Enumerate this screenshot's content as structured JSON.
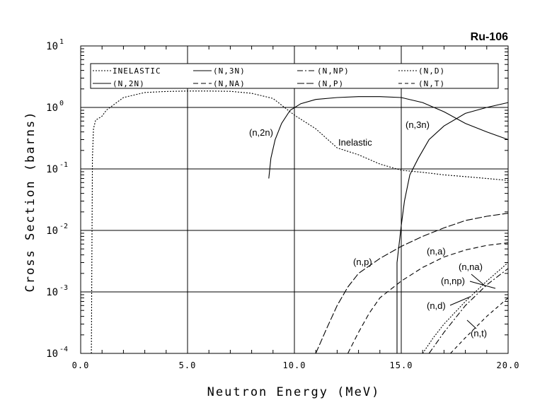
{
  "chart_data": {
    "type": "line",
    "title": "Ru-106",
    "xlabel": "Neutron Energy (MeV)",
    "ylabel": "Cross Section (barns)",
    "xlim": [
      0,
      20
    ],
    "ylim_log10": [
      -4,
      1
    ],
    "y_scale": "log",
    "grid": true,
    "x_ticks": [
      "0.0",
      "5.0",
      "10.0",
      "15.0",
      "20.0"
    ],
    "y_ticks": [
      {
        "base": "10",
        "exp": "-4"
      },
      {
        "base": "10",
        "exp": "-3"
      },
      {
        "base": "10",
        "exp": "-2"
      },
      {
        "base": "10",
        "exp": "-1"
      },
      {
        "base": "10",
        "exp": "0"
      },
      {
        "base": "10",
        "exp": "1"
      }
    ],
    "legend_position": "top",
    "legend": [
      {
        "label": "INELASTIC",
        "dash": "2,2"
      },
      {
        "label": "(N,3N)",
        "dash": ""
      },
      {
        "label": "(N,NP)",
        "dash": "8,3,2,3"
      },
      {
        "label": "(N,D)",
        "dash": "2,2"
      },
      {
        "label": "(N,2N)",
        "dash": ""
      },
      {
        "label": "(N,NA)",
        "dash": "7,4"
      },
      {
        "label": "(N,P)",
        "dash": "10,3"
      },
      {
        "label": "(N,T)",
        "dash": "5,4"
      }
    ],
    "series": [
      {
        "name": "INELASTIC",
        "dash": "2,2",
        "points": [
          [
            0.5,
            5e-05
          ],
          [
            0.55,
            0.15
          ],
          [
            0.6,
            0.45
          ],
          [
            0.7,
            0.62
          ],
          [
            1.0,
            0.72
          ],
          [
            1.2,
            0.9
          ],
          [
            2,
            1.45
          ],
          [
            3,
            1.75
          ],
          [
            4,
            1.82
          ],
          [
            5,
            1.85
          ],
          [
            6,
            1.85
          ],
          [
            7,
            1.83
          ],
          [
            8,
            1.7
          ],
          [
            9,
            1.4
          ],
          [
            10,
            0.75
          ],
          [
            11,
            0.45
          ],
          [
            12,
            0.22
          ],
          [
            13,
            0.17
          ],
          [
            14,
            0.12
          ],
          [
            15,
            0.095
          ],
          [
            16,
            0.088
          ],
          [
            17,
            0.08
          ],
          [
            18,
            0.075
          ],
          [
            19,
            0.07
          ],
          [
            20,
            0.065
          ]
        ]
      },
      {
        "name": "(N,2N)",
        "dash": "",
        "points": [
          [
            8.8,
            0.07
          ],
          [
            8.9,
            0.15
          ],
          [
            9.1,
            0.3
          ],
          [
            9.4,
            0.55
          ],
          [
            9.8,
            0.9
          ],
          [
            10.3,
            1.15
          ],
          [
            11,
            1.35
          ],
          [
            12,
            1.45
          ],
          [
            13,
            1.5
          ],
          [
            14,
            1.5
          ],
          [
            15,
            1.45
          ],
          [
            16,
            1.2
          ],
          [
            17,
            0.85
          ],
          [
            18,
            0.55
          ],
          [
            19,
            0.4
          ],
          [
            20,
            0.3
          ]
        ]
      },
      {
        "name": "(N,3N)",
        "dash": "",
        "points": [
          [
            14.8,
            0.0001
          ],
          [
            14.8,
            0.003
          ],
          [
            14.9,
            0.006
          ],
          [
            15.0,
            0.012
          ],
          [
            15.15,
            0.03
          ],
          [
            15.4,
            0.08
          ],
          [
            15.8,
            0.15
          ],
          [
            16.3,
            0.3
          ],
          [
            17,
            0.5
          ],
          [
            18,
            0.8
          ],
          [
            19,
            1.0
          ],
          [
            20,
            1.2
          ]
        ]
      },
      {
        "name": "(N,P)",
        "dash": "10,3",
        "points": [
          [
            11,
            0.0001
          ],
          [
            11.5,
            0.00025
          ],
          [
            12,
            0.0006
          ],
          [
            12.5,
            0.0012
          ],
          [
            13,
            0.002
          ],
          [
            14,
            0.0035
          ],
          [
            15,
            0.0055
          ],
          [
            16,
            0.008
          ],
          [
            17,
            0.011
          ],
          [
            18,
            0.0145
          ],
          [
            19,
            0.017
          ],
          [
            20,
            0.019
          ]
        ]
      },
      {
        "name": "(N,NA)",
        "dash": "7,4",
        "points": [
          [
            12.5,
            0.0001
          ],
          [
            13,
            0.00022
          ],
          [
            13.5,
            0.00045
          ],
          [
            14,
            0.0008
          ],
          [
            15,
            0.0015
          ],
          [
            16,
            0.0025
          ],
          [
            17,
            0.0037
          ],
          [
            18,
            0.0048
          ],
          [
            19,
            0.0057
          ],
          [
            20,
            0.0063
          ]
        ]
      },
      {
        "name": "(N,D)",
        "dash": "2,2",
        "points": [
          [
            16,
            0.0001
          ],
          [
            16.5,
            0.00018
          ],
          [
            17,
            0.0003
          ],
          [
            18,
            0.0007
          ],
          [
            19,
            0.0015
          ],
          [
            20,
            0.003
          ]
        ]
      },
      {
        "name": "(N,NP)",
        "dash": "8,3,2,3",
        "points": [
          [
            16.3,
            0.0001
          ],
          [
            17,
            0.00022
          ],
          [
            18,
            0.0006
          ],
          [
            19,
            0.0013
          ],
          [
            20,
            0.0024
          ]
        ]
      },
      {
        "name": "(N,T)",
        "dash": "5,4",
        "points": [
          [
            17.3,
            0.0001
          ],
          [
            18,
            0.00018
          ],
          [
            19,
            0.0004
          ],
          [
            20,
            0.0008
          ]
        ]
      }
    ],
    "annotations": [
      {
        "text": "(n,2n)"
      },
      {
        "text": "Inelastic"
      },
      {
        "text": "(n,3n)"
      },
      {
        "text": "(n,p)"
      },
      {
        "text": "(n,a)"
      },
      {
        "text": "(n,na)"
      },
      {
        "text": "(n,np)"
      },
      {
        "text": "(n,d)"
      },
      {
        "text": "(n,t)"
      }
    ]
  }
}
